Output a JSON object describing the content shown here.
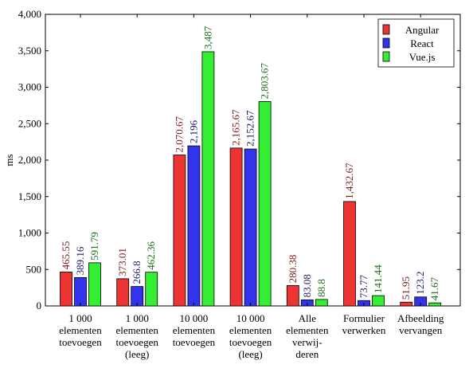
{
  "chart_data": {
    "type": "bar",
    "ylabel": "ms",
    "ylim": [
      0,
      4000
    ],
    "yticks": [
      "0",
      "500",
      "1,000",
      "1,500",
      "2,000",
      "2,500",
      "3,000",
      "3,500",
      "4,000"
    ],
    "categories": [
      [
        "1 000",
        "elementen",
        "toevoegen"
      ],
      [
        "1 000",
        "elementen",
        "toevoegen",
        "(leeg)"
      ],
      [
        "10 000",
        "elementen",
        "toevoegen"
      ],
      [
        "10 000",
        "elementen",
        "toevoegen",
        "(leeg)"
      ],
      [
        "Alle",
        "elementen",
        "verwij-",
        "deren"
      ],
      [
        "Formulier",
        "verwerken"
      ],
      [
        "Afbeelding",
        "vervangen"
      ]
    ],
    "series": [
      {
        "name": "Angular",
        "color": "#ee3333",
        "label_color": "#7a1a1a",
        "values": [
          465.55,
          373.01,
          2070.67,
          2165.67,
          280.38,
          1432.67,
          51.95
        ],
        "labels": [
          "465.55",
          "373.01",
          "2,070.67",
          "2,165.67",
          "280.38",
          "1,432.67",
          "51.95"
        ]
      },
      {
        "name": "React",
        "color": "#3333ee",
        "label_color": "#1a1a6e",
        "values": [
          389.16,
          266.8,
          2196,
          2152.67,
          83.08,
          73.77,
          123.2
        ],
        "labels": [
          "389.16",
          "266.8",
          "2,196",
          "2,152.67",
          "83.08",
          "73.77",
          "123.2"
        ]
      },
      {
        "name": "Vue.js",
        "color": "#33ee33",
        "label_color": "#1a6e1a",
        "values": [
          591.79,
          462.36,
          3487,
          2803.67,
          88.8,
          141.44,
          41.67
        ],
        "labels": [
          "591.79",
          "462.36",
          "3,487",
          "2,803.67",
          "88.8",
          "141.44",
          "41.67"
        ]
      }
    ],
    "legend_position": "top-right",
    "grid": false
  }
}
